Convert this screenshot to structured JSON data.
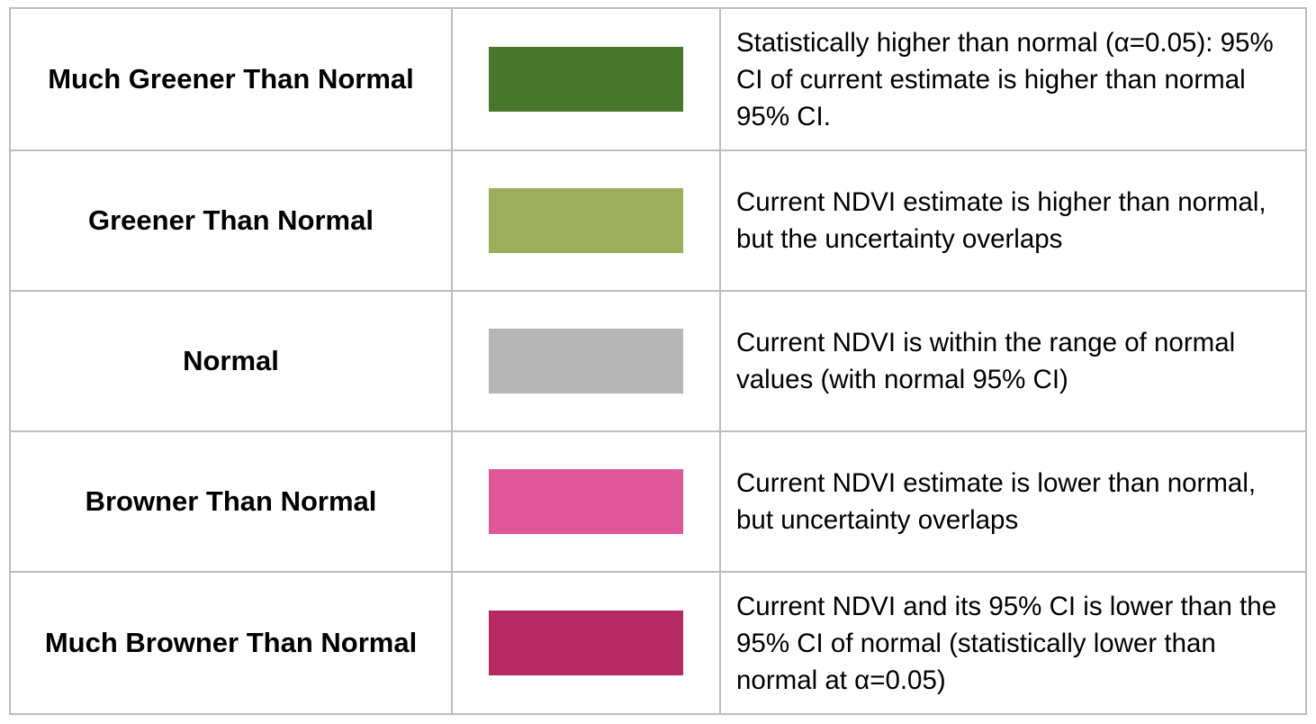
{
  "legend": {
    "rows": [
      {
        "label": "Much Greener Than Normal",
        "color": "#48772b",
        "description": "Statistically higher than normal (α=0.05): 95% CI of current estimate is higher than normal 95% CI."
      },
      {
        "label": "Greener Than Normal",
        "color": "#9cad5c",
        "description": "Current NDVI estimate is higher than normal, but the uncertainty overlaps"
      },
      {
        "label": "Normal",
        "color": "#b6b6b6",
        "description": "Current NDVI is within the range of normal values (with normal 95% CI)"
      },
      {
        "label": "Browner Than Normal",
        "color": "#e05798",
        "description": "Current NDVI estimate is lower than normal, but uncertainty overlaps"
      },
      {
        "label": "Much Browner Than Normal",
        "color": "#b62a63",
        "description": "Current NDVI and its 95% CI is lower than the 95% CI of normal (statistically lower than normal at α=0.05)"
      }
    ]
  }
}
